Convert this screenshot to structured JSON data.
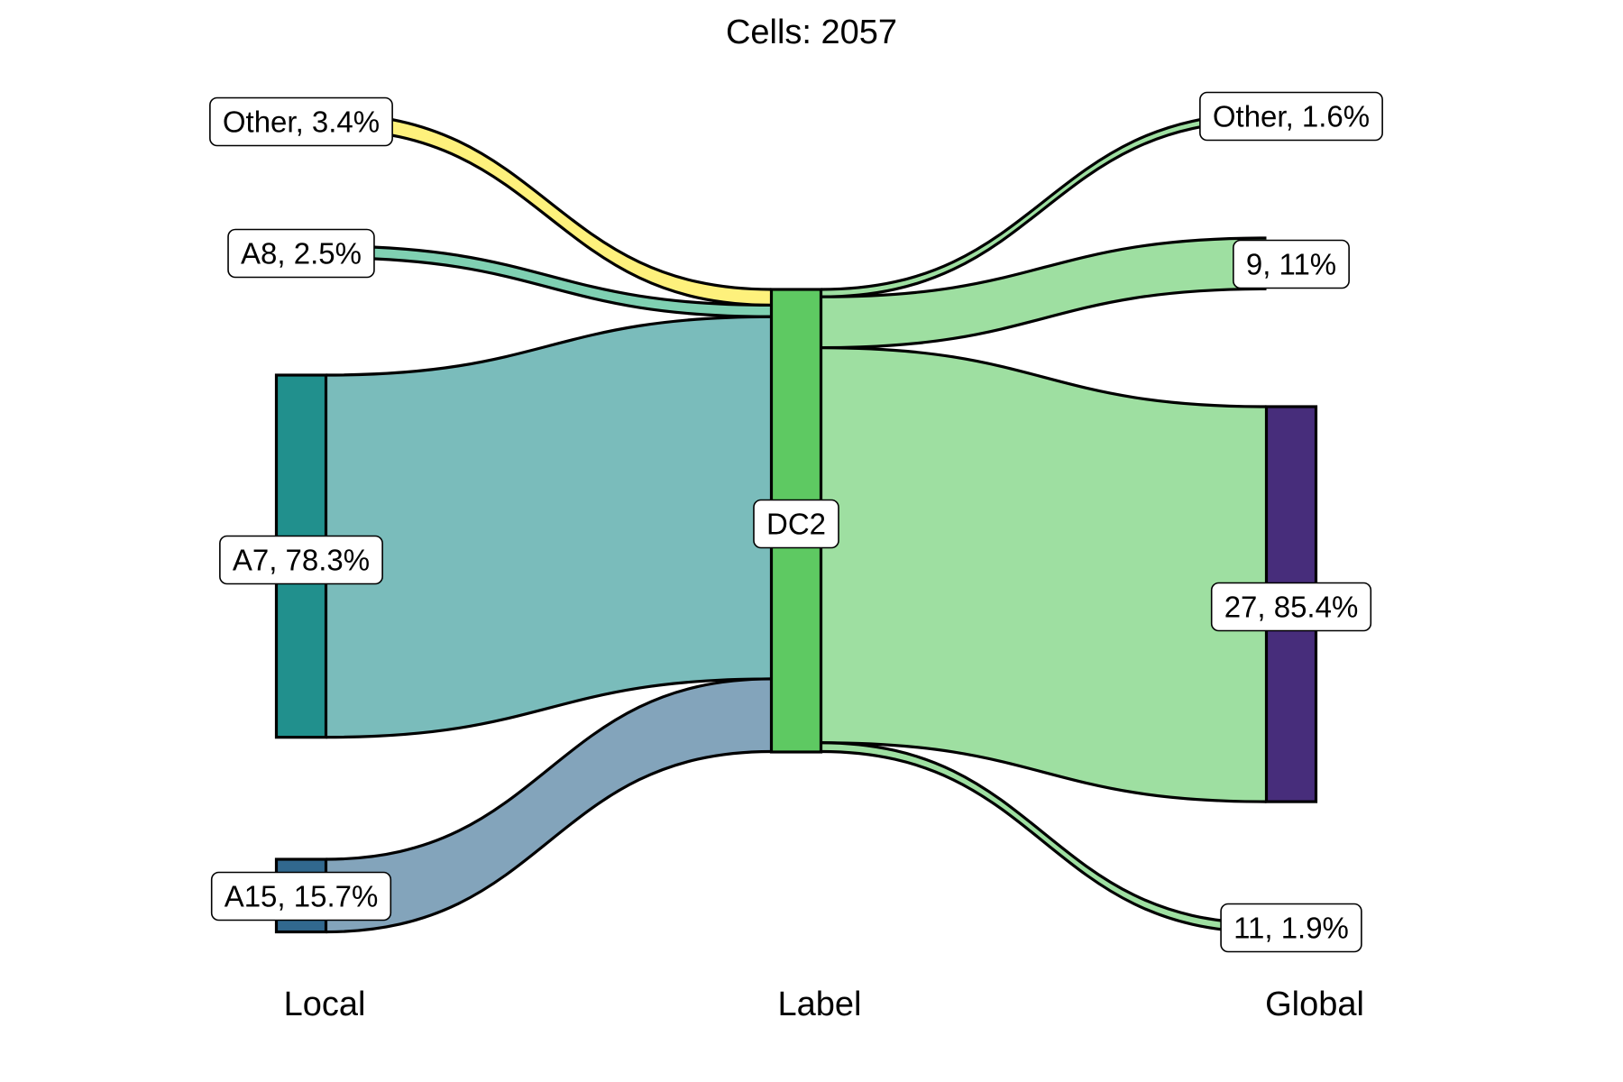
{
  "chart_data": {
    "type": "sankey",
    "title": "Cells:  2057",
    "total": 2057,
    "axes": [
      "Local",
      "Label",
      "Global"
    ],
    "nodes": [
      {
        "id": "local_other",
        "axis": "Local",
        "label": "Other, 3.4%",
        "share": 3.4,
        "color": "#fde725"
      },
      {
        "id": "local_a8",
        "axis": "Local",
        "label": "A8, 2.5%",
        "share": 2.5,
        "color": "#2ab07f"
      },
      {
        "id": "local_a7",
        "axis": "Local",
        "label": "A7, 78.3%",
        "share": 78.3,
        "color": "#21908d"
      },
      {
        "id": "local_a15",
        "axis": "Local",
        "label": "A15, 15.7%",
        "share": 15.7,
        "color": "#31688e"
      },
      {
        "id": "label_dc2",
        "axis": "Label",
        "label": "DC2",
        "share": 100,
        "color": "#5ec962"
      },
      {
        "id": "global_other",
        "axis": "Global",
        "label": "Other, 1.6%",
        "share": 1.6,
        "color": "#5ec962"
      },
      {
        "id": "global_9",
        "axis": "Global",
        "label": "9, 11%",
        "share": 11,
        "color": "#5ec962"
      },
      {
        "id": "global_27",
        "axis": "Global",
        "label": "27, 85.4%",
        "share": 85.4,
        "color": "#472d7b"
      },
      {
        "id": "global_11",
        "axis": "Global",
        "label": "11, 1.9%",
        "share": 1.9,
        "color": "#5ec962"
      }
    ],
    "flows": [
      {
        "from": "local_other",
        "to": "label_dc2",
        "share": 3.4,
        "color": "#fde725"
      },
      {
        "from": "local_a8",
        "to": "label_dc2",
        "share": 2.5,
        "color": "#2ab07f"
      },
      {
        "from": "local_a7",
        "to": "label_dc2",
        "share": 78.3,
        "color": "#21908d"
      },
      {
        "from": "local_a15",
        "to": "label_dc2",
        "share": 15.7,
        "color": "#31688e"
      },
      {
        "from": "label_dc2",
        "to": "global_other",
        "share": 1.6,
        "color": "#5ec962"
      },
      {
        "from": "label_dc2",
        "to": "global_9",
        "share": 11,
        "color": "#5ec962"
      },
      {
        "from": "label_dc2",
        "to": "global_27",
        "share": 85.4,
        "color": "#5ec962"
      },
      {
        "from": "label_dc2",
        "to": "global_11",
        "share": 1.9,
        "color": "#5ec962"
      }
    ]
  }
}
